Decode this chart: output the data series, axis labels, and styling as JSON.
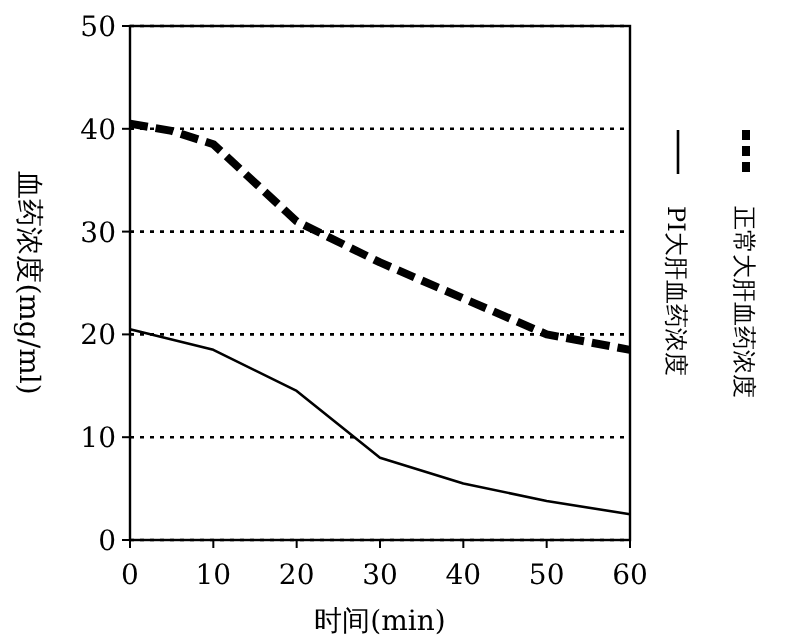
{
  "chart_data": {
    "type": "line",
    "xlabel": "时间(min)",
    "ylabel": "血药浓度(mg/ml)",
    "x": [
      0,
      5,
      10,
      20,
      30,
      40,
      50,
      60
    ],
    "series": [
      {
        "name": "正常大肝血药浓度",
        "color": "#000000",
        "line_style": "dashed",
        "values": [
          40.5,
          39.8,
          38.5,
          31,
          27,
          23.5,
          20,
          18.5
        ]
      },
      {
        "name": "PI大肝血药浓度",
        "color": "#000000",
        "line_style": "solid",
        "values": [
          20.5,
          null,
          18.5,
          14.5,
          8,
          5.5,
          3.8,
          2.5
        ]
      }
    ],
    "xlim": [
      0,
      60
    ],
    "xticks": [
      0,
      10,
      20,
      30,
      40,
      50,
      60
    ],
    "ylim": [
      0,
      50
    ],
    "yticks": [
      0,
      10,
      20,
      30,
      40,
      50
    ],
    "grid": "y",
    "legend": "right",
    "marker": "none"
  }
}
